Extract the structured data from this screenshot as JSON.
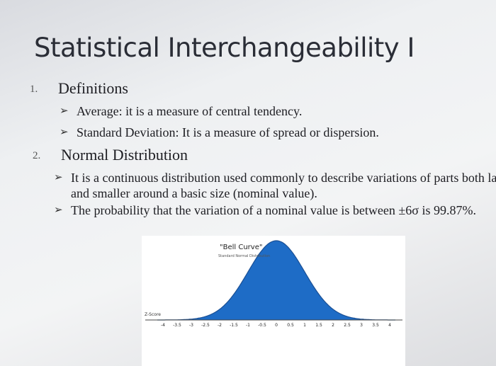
{
  "title": "Statistical Interchangeability I",
  "sections": [
    {
      "number": "1.",
      "heading": "Definitions",
      "items": [
        "Average: it is a measure of central tendency.",
        "Standard Deviation: It is a measure of spread or dispersion."
      ]
    },
    {
      "number": "2.",
      "heading": "Normal Distribution",
      "items": [
        "It is a continuous distribution used commonly to describe variations of parts both larger and smaller around a basic size (nominal value).",
        "The probability that the variation of a nominal value is between ±6σ is 99.87%."
      ]
    }
  ],
  "figure": {
    "title": "\"Bell Curve\"",
    "subtitle": "Standard Normal Distribution",
    "axis_label": "Z-Score",
    "z_scores": [
      "-4",
      "-3.5",
      "-3",
      "-2.5",
      "-2",
      "-1.5",
      "-1",
      "-0.5",
      "0",
      "0.5",
      "1",
      "1.5",
      "2",
      "2.5",
      "3",
      "3.5",
      "4"
    ]
  }
}
